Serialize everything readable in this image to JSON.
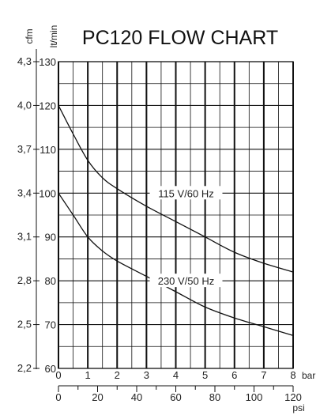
{
  "chart_data": {
    "type": "line",
    "title": "PC120 FLOW CHART",
    "x_primary": {
      "unit": "bar",
      "range": [
        0,
        8
      ],
      "ticks": [
        "0",
        "1",
        "2",
        "3",
        "4",
        "5",
        "6",
        "7",
        "8"
      ]
    },
    "x_secondary": {
      "unit": "psi",
      "range": [
        0,
        120
      ],
      "ticks": [
        "0",
        "20",
        "40",
        "60",
        "80",
        "100",
        "120"
      ]
    },
    "y_primary": {
      "unit": "lt/min",
      "range": [
        60,
        130
      ],
      "ticks": [
        "60",
        "70",
        "80",
        "90",
        "100",
        "110",
        "120",
        "130"
      ]
    },
    "y_secondary": {
      "unit": "cfm",
      "range": [
        2.2,
        4.3
      ],
      "ticks": [
        "2,2",
        "2,5",
        "2,8",
        "3,1",
        "3,4",
        "3,7",
        "4,0",
        "4,3"
      ]
    },
    "grid": true,
    "series": [
      {
        "name": "115 V/60 Hz",
        "x": [
          0,
          0.5,
          1,
          1.5,
          2,
          3,
          4,
          5,
          6,
          7,
          8
        ],
        "y": [
          120,
          113.5,
          107.5,
          103.5,
          101,
          97,
          93.5,
          90,
          86.5,
          84,
          82
        ]
      },
      {
        "name": "230 V/50 Hz",
        "x": [
          0,
          0.5,
          1,
          1.5,
          2,
          3,
          4,
          5,
          6,
          7,
          8
        ],
        "y": [
          100,
          95,
          90,
          86.8,
          84.5,
          81,
          77.5,
          74,
          71.5,
          69.5,
          67.5
        ]
      }
    ]
  }
}
